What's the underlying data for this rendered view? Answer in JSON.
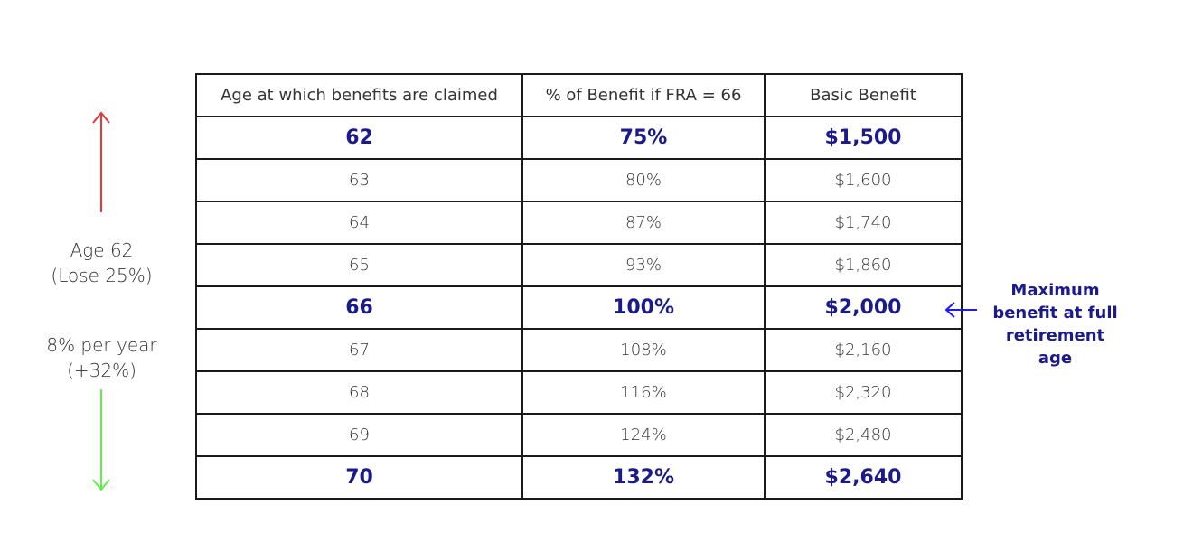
{
  "table": {
    "headers": [
      "Age at which benefits are claimed",
      "% of Benefit if FRA = 66",
      "Basic Benefit"
    ],
    "rows": [
      {
        "age": "62",
        "percent": "75%",
        "benefit": "$1,500",
        "highlight": true
      },
      {
        "age": "63",
        "percent": "80%",
        "benefit": "$1,600",
        "highlight": false
      },
      {
        "age": "64",
        "percent": "87%",
        "benefit": "$1,740",
        "highlight": false
      },
      {
        "age": "65",
        "percent": "93%",
        "benefit": "$1,860",
        "highlight": false
      },
      {
        "age": "66",
        "percent": "100%",
        "benefit": "$2,000",
        "highlight": true
      },
      {
        "age": "67",
        "percent": "108%",
        "benefit": "$2,160",
        "highlight": false
      },
      {
        "age": "68",
        "percent": "116%",
        "benefit": "$2,320",
        "highlight": false
      },
      {
        "age": "69",
        "percent": "124%",
        "benefit": "$2,480",
        "highlight": false
      },
      {
        "age": "70",
        "percent": "132%",
        "benefit": "$2,640",
        "highlight": true
      }
    ]
  },
  "left_notes": {
    "age62_line1": "Age 62",
    "age62_line2": "(Lose 25%)",
    "rate_line1": "8% per year",
    "rate_line2": "(+32%)"
  },
  "annotation": {
    "line1": "Maximum",
    "line2": "benefit at full",
    "line3": "retirement age"
  },
  "colors": {
    "highlight_text": "#1a1a8c",
    "up_arrow": "#e53935",
    "down_arrow": "#5ff04a",
    "annotation_arrow": "#1a1aff"
  },
  "icons": {
    "up_arrow": "red-up-arrow-icon",
    "down_arrow": "green-down-arrow-icon",
    "annotation_arrow": "left-arrow-icon"
  }
}
